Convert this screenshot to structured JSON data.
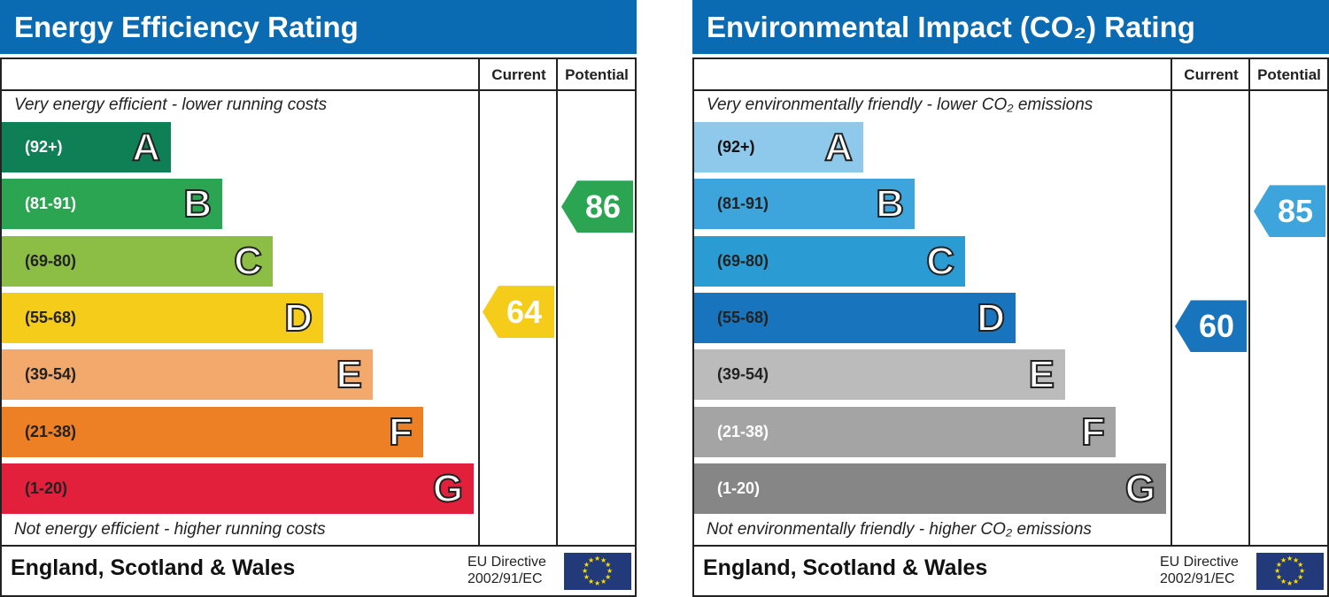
{
  "chart_data": [
    {
      "type": "bar",
      "title": "Energy Efficiency Rating",
      "columns": [
        "Current",
        "Potential"
      ],
      "top_note": "Very energy efficient - lower running costs",
      "bottom_note": "Not energy efficient - higher running costs",
      "bands": [
        {
          "letter": "A",
          "range": "(92+)",
          "color": "#0f7f55",
          "text": "#ffffff"
        },
        {
          "letter": "B",
          "range": "(81-91)",
          "color": "#2ca553",
          "text": "#ffffff"
        },
        {
          "letter": "C",
          "range": "(69-80)",
          "color": "#8cbd44",
          "text": "#222222"
        },
        {
          "letter": "D",
          "range": "(55-68)",
          "color": "#f5cc1a",
          "text": "#222222"
        },
        {
          "letter": "E",
          "range": "(39-54)",
          "color": "#f2a96b",
          "text": "#222222"
        },
        {
          "letter": "F",
          "range": "(21-38)",
          "color": "#ed8025",
          "text": "#222222"
        },
        {
          "letter": "G",
          "range": "(1-20)",
          "color": "#e3203b",
          "text": "#222222"
        }
      ],
      "current": {
        "value": 64,
        "band": "D",
        "color": "#f5cc1a"
      },
      "potential": {
        "value": 86,
        "band": "B",
        "color": "#2ca553"
      },
      "region": "England, Scotland & Wales",
      "directive": [
        "EU Directive",
        "2002/91/EC"
      ]
    },
    {
      "type": "bar",
      "title": "Environmental Impact (CO₂) Rating",
      "columns": [
        "Current",
        "Potential"
      ],
      "top_note": "Very environmentally friendly - lower CO₂ emissions",
      "bottom_note": "Not environmentally friendly - higher CO₂ emissions",
      "bands": [
        {
          "letter": "A",
          "range": "(92+)",
          "color": "#8ec8ea",
          "text": "#111111"
        },
        {
          "letter": "B",
          "range": "(81-91)",
          "color": "#3ea4dc",
          "text": "#222222"
        },
        {
          "letter": "C",
          "range": "(69-80)",
          "color": "#2b9bd3",
          "text": "#222222"
        },
        {
          "letter": "D",
          "range": "(55-68)",
          "color": "#1874bd",
          "text": "#222222"
        },
        {
          "letter": "E",
          "range": "(39-54)",
          "color": "#bbbbbb",
          "text": "#222222"
        },
        {
          "letter": "F",
          "range": "(21-38)",
          "color": "#a4a4a4",
          "text": "#ffffff"
        },
        {
          "letter": "G",
          "range": "(1-20)",
          "color": "#868686",
          "text": "#ffffff"
        }
      ],
      "current": {
        "value": 60,
        "band": "D",
        "color": "#1874bd"
      },
      "potential": {
        "value": 85,
        "band": "B",
        "color": "#3ea4dc"
      },
      "region": "England, Scotland & Wales",
      "directive": [
        "EU Directive",
        "2002/91/EC"
      ]
    }
  ]
}
